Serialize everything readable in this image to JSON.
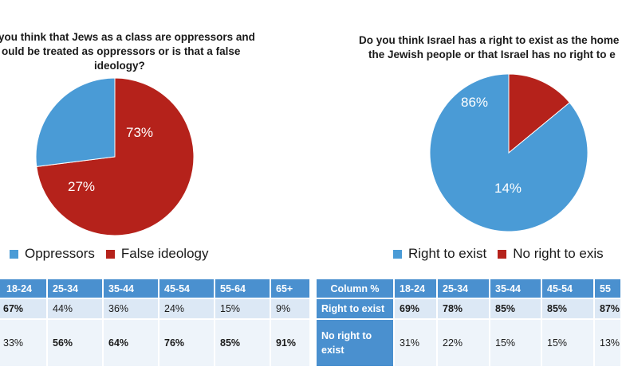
{
  "chart_data": [
    {
      "type": "pie",
      "title_lines": [
        "you think that Jews as a class are oppressors and",
        "ould be treated as oppressors or is that a false",
        "ideology?"
      ],
      "slices": [
        {
          "label": "False ideology",
          "value": 73,
          "text": "73%",
          "color": "#b5221b"
        },
        {
          "label": "Oppressors",
          "value": 27,
          "text": "27%",
          "color": "#4a9bd6"
        }
      ],
      "legend": [
        "Oppressors",
        "False ideology"
      ]
    },
    {
      "type": "pie",
      "title_lines": [
        "Do you think Israel has a right to exist as the home",
        "the Jewish people or that Israel has no right to e"
      ],
      "slices": [
        {
          "label": "No right to exist",
          "value": 14,
          "text": "14%",
          "color": "#b5221b"
        },
        {
          "label": "Right to exist",
          "value": 86,
          "text": "86%",
          "color": "#4a9bd6"
        }
      ],
      "legend": [
        "Right to exist",
        "No right to exis"
      ]
    },
    {
      "type": "table",
      "header": [
        "18-24",
        "25-34",
        "35-44",
        "45-54",
        "55-64",
        "65+"
      ],
      "rows": [
        {
          "label": "",
          "cells": [
            {
              "v": "67%",
              "bold": true
            },
            {
              "v": "44%",
              "bold": false
            },
            {
              "v": "36%",
              "bold": false
            },
            {
              "v": "24%",
              "bold": false
            },
            {
              "v": "15%",
              "bold": false
            },
            {
              "v": "9%",
              "bold": false
            }
          ]
        },
        {
          "label": "",
          "cells": [
            {
              "v": "33%",
              "bold": false
            },
            {
              "v": "56%",
              "bold": true
            },
            {
              "v": "64%",
              "bold": true
            },
            {
              "v": "76%",
              "bold": true
            },
            {
              "v": "85%",
              "bold": true
            },
            {
              "v": "91%",
              "bold": true
            }
          ]
        }
      ]
    },
    {
      "type": "table",
      "corner": "Column %",
      "header": [
        "18-24",
        "25-34",
        "35-44",
        "45-54",
        "55"
      ],
      "rows": [
        {
          "label": "Right to exist",
          "cells": [
            {
              "v": "69%",
              "bold": true
            },
            {
              "v": "78%",
              "bold": true
            },
            {
              "v": "85%",
              "bold": true
            },
            {
              "v": "85%",
              "bold": true
            },
            {
              "v": "87%",
              "bold": true
            }
          ]
        },
        {
          "label": "No right to exist",
          "cells": [
            {
              "v": "31%",
              "bold": false
            },
            {
              "v": "22%",
              "bold": false
            },
            {
              "v": "15%",
              "bold": false
            },
            {
              "v": "15%",
              "bold": false
            },
            {
              "v": "13%",
              "bold": false
            }
          ]
        }
      ]
    }
  ]
}
